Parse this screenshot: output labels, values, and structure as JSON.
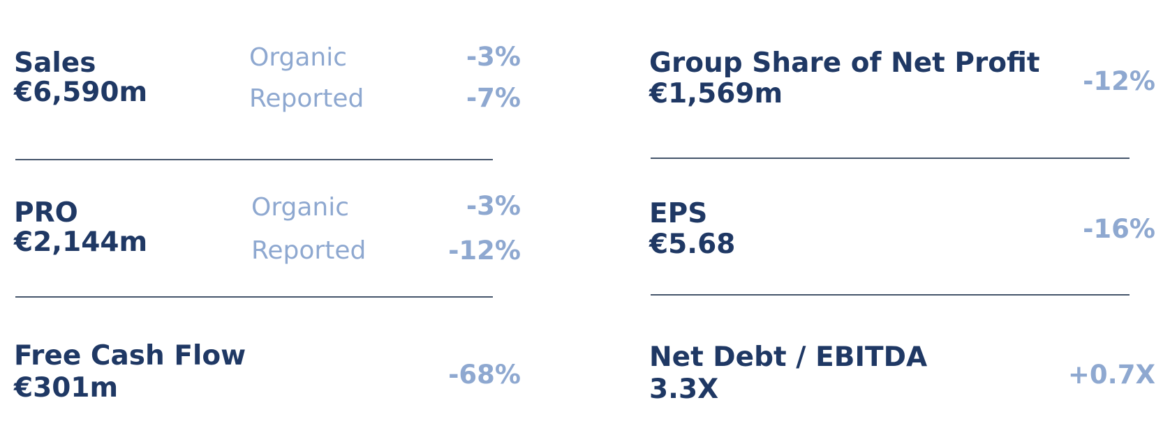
{
  "left": {
    "sales": {
      "title": "Sales",
      "value": "€6,590m",
      "rows": [
        {
          "label": "Organic",
          "change": "-3%"
        },
        {
          "label": "Reported",
          "change": "-7%"
        }
      ]
    },
    "pro": {
      "title": "PRO",
      "value": "€2,144m",
      "rows": [
        {
          "label": "Organic",
          "change": "-3%"
        },
        {
          "label": "Reported",
          "change": "-12%"
        }
      ]
    },
    "fcf": {
      "title": "Free Cash Flow",
      "value": "€301m",
      "change": "-68%"
    }
  },
  "right": {
    "net_profit": {
      "title": "Group Share of Net Profit",
      "value": "€1,569m",
      "change": "-12%"
    },
    "eps": {
      "title": "EPS",
      "value": "€5.68",
      "change": "-16%"
    },
    "leverage": {
      "title": "Net Debt / EBITDA",
      "value": "3.3X",
      "change": "+0.7X"
    }
  },
  "colors": {
    "primary": "#1f3864",
    "secondary": "#8ea8d0",
    "divider": "#44546a"
  }
}
